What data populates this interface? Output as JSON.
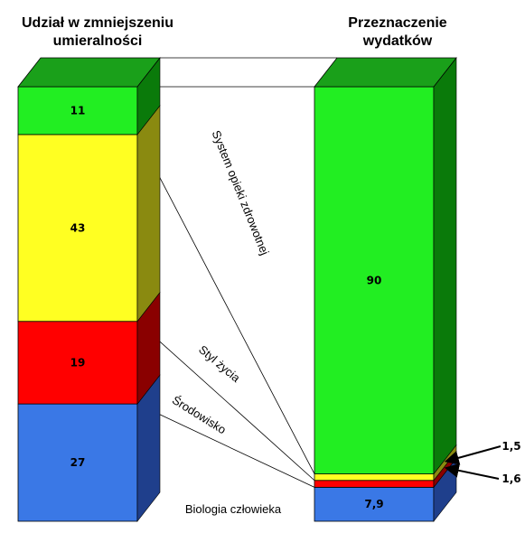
{
  "chart_data": {
    "type": "bar",
    "stacked": true,
    "bars": [
      {
        "title_lines": [
          "Udział w zmniejszeniu",
          "umieralności"
        ],
        "segments": [
          {
            "category": "Biologia człowieka",
            "value": 27,
            "label": "27"
          },
          {
            "category": "Środowisko",
            "value": 19,
            "label": "19"
          },
          {
            "category": "Styl życia",
            "value": 43,
            "label": "43"
          },
          {
            "category": "System opieki zdrowotnej",
            "value": 11,
            "label": "11"
          }
        ]
      },
      {
        "title_lines": [
          "Przeznaczenie",
          "wydatków"
        ],
        "segments": [
          {
            "category": "Biologia człowieka",
            "value": 7.9,
            "label": "7,9"
          },
          {
            "category": "Środowisko",
            "value": 1.6,
            "label": "1,6"
          },
          {
            "category": "Styl życia",
            "value": 1.5,
            "label": "1,5"
          },
          {
            "category": "System opieki zdrowotnej",
            "value": 90,
            "label": "90"
          }
        ]
      }
    ],
    "categories": [
      "Biologia człowieka",
      "Środowisko",
      "Styl życia",
      "System opieki zdrowotnej"
    ],
    "colors": {
      "Biologia człowieka": "#3a78e6",
      "Środowisko": "#ff0000",
      "Styl życia": "#ffff22",
      "System opieki zdrowotnej": "#22ee22"
    },
    "side_colors": {
      "Biologia człowieka": "#1f3f8c",
      "Środowisko": "#8a0000",
      "Styl życia": "#8a8a10",
      "System opieki zdrowotnej": "#0a7a0a"
    },
    "top_color": "#1aa01a"
  }
}
